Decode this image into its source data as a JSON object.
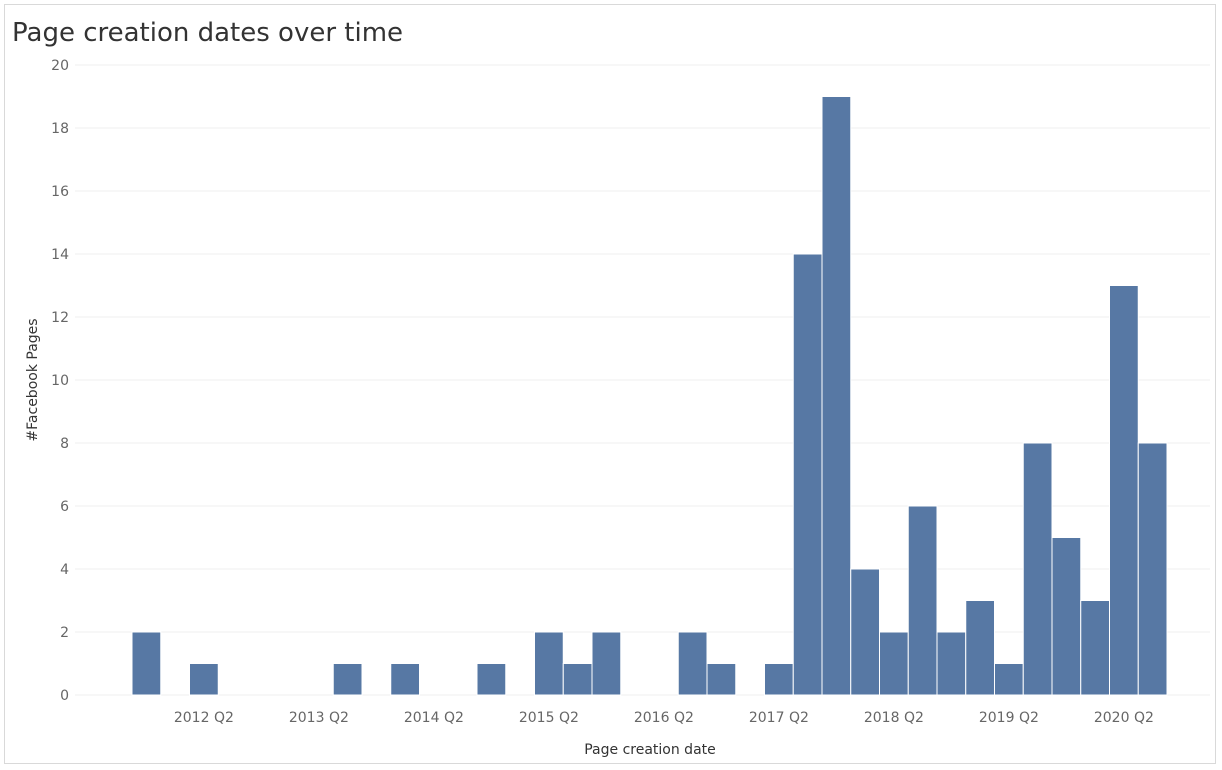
{
  "chart_data": {
    "type": "bar",
    "title": "Page creation dates over time",
    "xlabel": "Page creation date",
    "ylabel": "#Facebook Pages",
    "ylim": [
      0,
      20
    ],
    "yticks": [
      0,
      2,
      4,
      6,
      8,
      10,
      12,
      14,
      16,
      18,
      20
    ],
    "xtick_labels": [
      "2012 Q2",
      "2013 Q2",
      "2014 Q2",
      "2015 Q2",
      "2016 Q2",
      "2017 Q2",
      "2018 Q2",
      "2019 Q2",
      "2020 Q2"
    ],
    "grid": true,
    "categories": [
      "2011 Q4",
      "2012 Q1",
      "2012 Q2",
      "2012 Q3",
      "2012 Q4",
      "2013 Q1",
      "2013 Q2",
      "2013 Q3",
      "2013 Q4",
      "2014 Q1",
      "2014 Q2",
      "2014 Q3",
      "2014 Q4",
      "2015 Q1",
      "2015 Q2",
      "2015 Q3",
      "2015 Q4",
      "2016 Q1",
      "2016 Q2",
      "2016 Q3",
      "2016 Q4",
      "2017 Q1",
      "2017 Q2",
      "2017 Q3",
      "2017 Q4",
      "2018 Q1",
      "2018 Q2",
      "2018 Q3",
      "2018 Q4",
      "2019 Q1",
      "2019 Q2",
      "2019 Q3",
      "2019 Q4",
      "2020 Q1",
      "2020 Q2",
      "2020 Q3"
    ],
    "values": [
      2,
      0,
      1,
      0,
      0,
      0,
      0,
      1,
      0,
      1,
      0,
      0,
      1,
      0,
      2,
      1,
      2,
      0,
      0,
      2,
      1,
      0,
      1,
      14,
      19,
      4,
      2,
      6,
      2,
      3,
      1,
      8,
      5,
      3,
      13,
      8
    ]
  }
}
